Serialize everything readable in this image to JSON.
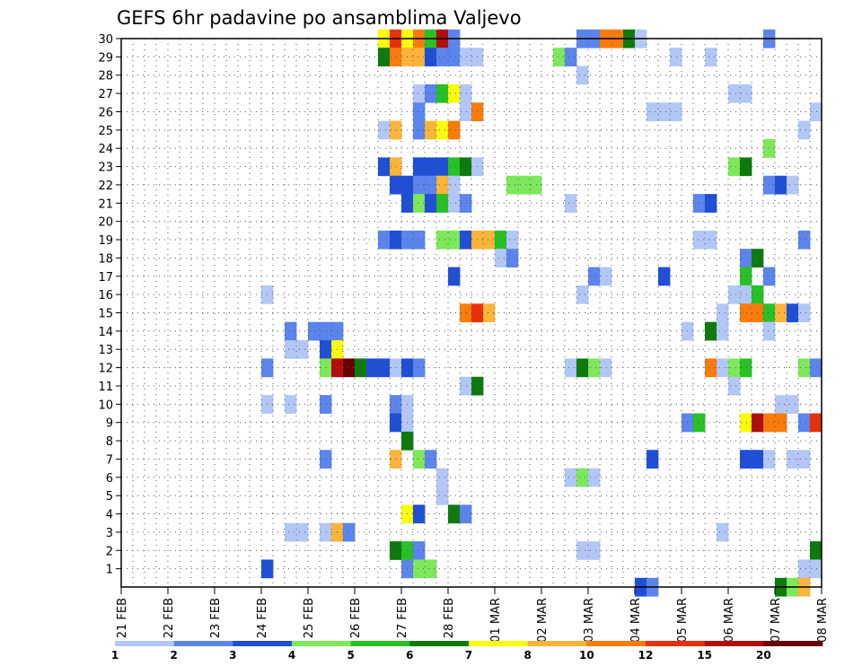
{
  "chart_data": {
    "type": "heatmap",
    "title": "GEFS 6hr padavine po ansamblima Valjevo",
    "xlabel": "",
    "ylabel": "",
    "x_ticks": [
      "21 FEB",
      "22 FEB",
      "23 FEB",
      "24 FEB",
      "25 FEB",
      "26 FEB",
      "27 FEB",
      "28 FEB",
      "01 MAR",
      "02 MAR",
      "03 MAR",
      "04 MAR",
      "05 MAR",
      "06 MAR",
      "07 MAR",
      "08 MAR"
    ],
    "y_ticks": [
      "1",
      "2",
      "3",
      "4",
      "5",
      "6",
      "7",
      "8",
      "9",
      "10",
      "11",
      "12",
      "13",
      "14",
      "15",
      "16",
      "17",
      "18",
      "19",
      "20",
      "21",
      "22",
      "23",
      "24",
      "25",
      "26",
      "27",
      "28",
      "29",
      "30"
    ],
    "time_steps_per_day": 4,
    "n_time_steps": 60,
    "y_range": [
      0,
      30
    ],
    "grid": true,
    "colorbar": {
      "ticks": [
        "1",
        "2",
        "3",
        "4",
        "5",
        "6",
        "7",
        "8",
        "10",
        "12",
        "15",
        "20"
      ],
      "colors": [
        "#b3c7f7",
        "#5b85ec",
        "#1f4fd6",
        "#7de85a",
        "#27c125",
        "#0e7a0e",
        "#fbfb0c",
        "#fbb43a",
        "#f97b0c",
        "#e8300c",
        "#b30c0c",
        "#680000"
      ]
    },
    "values": [
      {
        "member": 30,
        "cells": [
          [
            22,
            7
          ],
          [
            23,
            10
          ],
          [
            24,
            7
          ],
          [
            25,
            9
          ],
          [
            26,
            5
          ],
          [
            27,
            11
          ],
          [
            28,
            2
          ],
          [
            39,
            2
          ],
          [
            40,
            2
          ],
          [
            41,
            9
          ],
          [
            42,
            9
          ],
          [
            43,
            6
          ],
          [
            44,
            1
          ],
          [
            55,
            2
          ]
        ]
      },
      {
        "member": 29,
        "cells": [
          [
            22,
            6
          ],
          [
            23,
            9
          ],
          [
            24,
            8
          ],
          [
            25,
            8
          ],
          [
            26,
            3
          ],
          [
            27,
            2
          ],
          [
            28,
            2
          ],
          [
            29,
            1
          ],
          [
            30,
            1
          ],
          [
            37,
            4
          ],
          [
            38,
            2
          ],
          [
            47,
            1
          ],
          [
            50,
            1
          ]
        ]
      },
      {
        "member": 28,
        "cells": [
          [
            39,
            1
          ]
        ]
      },
      {
        "member": 27,
        "cells": [
          [
            25,
            1
          ],
          [
            26,
            2
          ],
          [
            27,
            5
          ],
          [
            28,
            7
          ],
          [
            29,
            1
          ],
          [
            52,
            1
          ],
          [
            53,
            1
          ]
        ]
      },
      {
        "member": 26,
        "cells": [
          [
            25,
            2
          ],
          [
            29,
            1
          ],
          [
            30,
            9
          ],
          [
            45,
            1
          ],
          [
            46,
            1
          ],
          [
            47,
            1
          ],
          [
            59,
            1
          ]
        ]
      },
      {
        "member": 25,
        "cells": [
          [
            22,
            1
          ],
          [
            23,
            8
          ],
          [
            25,
            2
          ],
          [
            26,
            8
          ],
          [
            27,
            7
          ],
          [
            28,
            9
          ],
          [
            58,
            1
          ]
        ]
      },
      {
        "member": 24,
        "cells": [
          [
            55,
            4
          ]
        ]
      },
      {
        "member": 23,
        "cells": [
          [
            22,
            3
          ],
          [
            23,
            8
          ],
          [
            25,
            3
          ],
          [
            26,
            3
          ],
          [
            27,
            3
          ],
          [
            28,
            5
          ],
          [
            29,
            6
          ],
          [
            30,
            1
          ],
          [
            52,
            4
          ],
          [
            53,
            6
          ]
        ]
      },
      {
        "member": 22,
        "cells": [
          [
            23,
            3
          ],
          [
            24,
            3
          ],
          [
            25,
            2
          ],
          [
            26,
            2
          ],
          [
            27,
            8
          ],
          [
            28,
            1
          ],
          [
            33,
            4
          ],
          [
            34,
            4
          ],
          [
            35,
            4
          ],
          [
            55,
            2
          ],
          [
            56,
            3
          ],
          [
            57,
            1
          ]
        ]
      },
      {
        "member": 21,
        "cells": [
          [
            24,
            3
          ],
          [
            25,
            4
          ],
          [
            26,
            3
          ],
          [
            27,
            5
          ],
          [
            28,
            1
          ],
          [
            29,
            2
          ],
          [
            38,
            1
          ],
          [
            49,
            2
          ],
          [
            50,
            3
          ]
        ]
      },
      {
        "member": 19,
        "cells": [
          [
            22,
            2
          ],
          [
            23,
            3
          ],
          [
            24,
            2
          ],
          [
            25,
            2
          ],
          [
            27,
            4
          ],
          [
            28,
            4
          ],
          [
            29,
            3
          ],
          [
            30,
            8
          ],
          [
            31,
            8
          ],
          [
            32,
            5
          ],
          [
            33,
            1
          ],
          [
            49,
            1
          ],
          [
            50,
            1
          ],
          [
            58,
            2
          ]
        ]
      },
      {
        "member": 18,
        "cells": [
          [
            32,
            1
          ],
          [
            33,
            2
          ],
          [
            53,
            2
          ],
          [
            54,
            6
          ]
        ]
      },
      {
        "member": 17,
        "cells": [
          [
            28,
            3
          ],
          [
            40,
            2
          ],
          [
            41,
            1
          ],
          [
            46,
            3
          ],
          [
            53,
            5
          ],
          [
            55,
            2
          ]
        ]
      },
      {
        "member": 16,
        "cells": [
          [
            12,
            1
          ],
          [
            39,
            1
          ],
          [
            52,
            1
          ],
          [
            53,
            1
          ],
          [
            54,
            5
          ]
        ]
      },
      {
        "member": 15,
        "cells": [
          [
            29,
            9
          ],
          [
            30,
            10
          ],
          [
            31,
            8
          ],
          [
            51,
            1
          ],
          [
            53,
            9
          ],
          [
            54,
            9
          ],
          [
            55,
            5
          ],
          [
            56,
            8
          ],
          [
            57,
            3
          ],
          [
            58,
            1
          ]
        ]
      },
      {
        "member": 14,
        "cells": [
          [
            14,
            2
          ],
          [
            16,
            2
          ],
          [
            17,
            2
          ],
          [
            18,
            2
          ],
          [
            48,
            1
          ],
          [
            50,
            6
          ],
          [
            51,
            1
          ],
          [
            55,
            1
          ]
        ]
      },
      {
        "member": 13,
        "cells": [
          [
            14,
            1
          ],
          [
            15,
            1
          ],
          [
            17,
            3
          ],
          [
            18,
            7
          ]
        ]
      },
      {
        "member": 12,
        "cells": [
          [
            12,
            2
          ],
          [
            17,
            4
          ],
          [
            18,
            11
          ],
          [
            19,
            12
          ],
          [
            20,
            6
          ],
          [
            21,
            3
          ],
          [
            22,
            3
          ],
          [
            23,
            1
          ],
          [
            24,
            3
          ],
          [
            25,
            2
          ],
          [
            38,
            1
          ],
          [
            39,
            6
          ],
          [
            40,
            4
          ],
          [
            41,
            1
          ],
          [
            50,
            9
          ],
          [
            51,
            1
          ],
          [
            52,
            4
          ],
          [
            53,
            5
          ],
          [
            58,
            4
          ],
          [
            59,
            2
          ]
        ]
      },
      {
        "member": 11,
        "cells": [
          [
            29,
            1
          ],
          [
            30,
            6
          ],
          [
            52,
            1
          ]
        ]
      },
      {
        "member": 10,
        "cells": [
          [
            12,
            1
          ],
          [
            14,
            1
          ],
          [
            17,
            2
          ],
          [
            23,
            2
          ],
          [
            24,
            1
          ],
          [
            56,
            1
          ],
          [
            57,
            1
          ]
        ]
      },
      {
        "member": 9,
        "cells": [
          [
            23,
            3
          ],
          [
            24,
            1
          ],
          [
            48,
            2
          ],
          [
            49,
            5
          ],
          [
            53,
            7
          ],
          [
            54,
            11
          ],
          [
            55,
            9
          ],
          [
            56,
            9
          ],
          [
            58,
            2
          ],
          [
            59,
            10
          ]
        ]
      },
      {
        "member": 8,
        "cells": [
          [
            24,
            6
          ]
        ]
      },
      {
        "member": 7,
        "cells": [
          [
            17,
            2
          ],
          [
            23,
            8
          ],
          [
            25,
            4
          ],
          [
            26,
            2
          ],
          [
            45,
            3
          ],
          [
            53,
            3
          ],
          [
            54,
            3
          ],
          [
            55,
            1
          ],
          [
            57,
            1
          ],
          [
            58,
            1
          ]
        ]
      },
      {
        "member": 6,
        "cells": [
          [
            27,
            1
          ],
          [
            38,
            1
          ],
          [
            39,
            4
          ],
          [
            40,
            1
          ]
        ]
      },
      {
        "member": 5,
        "cells": [
          [
            27,
            1
          ]
        ]
      },
      {
        "member": 4,
        "cells": [
          [
            24,
            7
          ],
          [
            25,
            3
          ],
          [
            28,
            6
          ],
          [
            29,
            2
          ]
        ]
      },
      {
        "member": 3,
        "cells": [
          [
            14,
            1
          ],
          [
            15,
            1
          ],
          [
            17,
            1
          ],
          [
            18,
            8
          ],
          [
            19,
            2
          ],
          [
            51,
            1
          ]
        ]
      },
      {
        "member": 2,
        "cells": [
          [
            23,
            6
          ],
          [
            24,
            5
          ],
          [
            25,
            2
          ],
          [
            39,
            1
          ],
          [
            40,
            1
          ],
          [
            59,
            6
          ]
        ]
      },
      {
        "member": 1,
        "cells": [
          [
            12,
            3
          ],
          [
            24,
            2
          ],
          [
            25,
            4
          ],
          [
            26,
            4
          ],
          [
            58,
            1
          ],
          [
            59,
            1
          ]
        ]
      },
      {
        "member": 0,
        "cells": [
          [
            44,
            3
          ],
          [
            45,
            2
          ],
          [
            56,
            6
          ],
          [
            57,
            4
          ],
          [
            58,
            8
          ]
        ]
      }
    ]
  }
}
